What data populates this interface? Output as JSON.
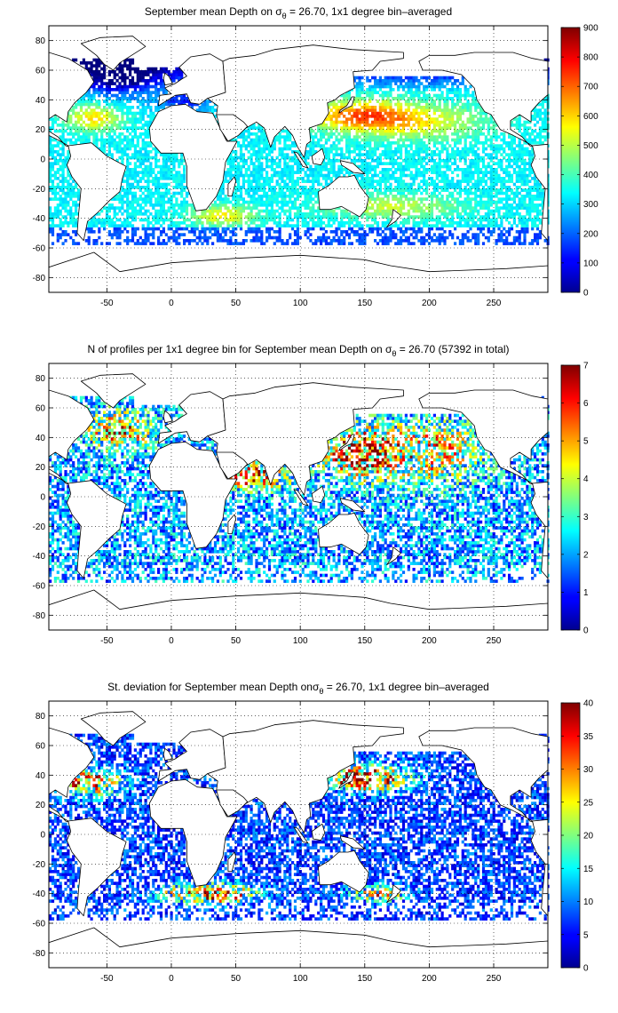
{
  "chart_data": [
    {
      "type": "heatmap",
      "title": "September mean Depth on σθ = 26.70, 1x1 degree bin–averaged",
      "title_parts": {
        "pre": "September mean Depth on σ",
        "sub": "θ",
        "post": " = 26.70, 1x1 degree bin–averaged"
      },
      "xlim": [
        -95,
        292
      ],
      "ylim": [
        -90,
        90
      ],
      "x_ticks": [
        -50,
        0,
        50,
        100,
        150,
        200,
        250
      ],
      "y_ticks": [
        80,
        60,
        40,
        20,
        0,
        -20,
        -40,
        -60,
        -80
      ],
      "colorbar": {
        "min": 0,
        "max": 900,
        "ticks": [
          0,
          100,
          200,
          300,
          400,
          500,
          600,
          700,
          800,
          900
        ]
      },
      "colormap": "jet",
      "grid": "dotted",
      "variable": "depth"
    },
    {
      "type": "heatmap",
      "title": "N of profiles per 1x1 degree bin for September mean Depth on σθ = 26.70 (57392 in total)",
      "title_parts": {
        "pre": "N of profiles per 1x1 degree bin for September mean Depth on σ",
        "sub": "θ",
        "post": " = 26.70 (57392 in total)"
      },
      "total_profiles": 57392,
      "xlim": [
        -95,
        292
      ],
      "ylim": [
        -90,
        90
      ],
      "x_ticks": [
        -50,
        0,
        50,
        100,
        150,
        200,
        250
      ],
      "y_ticks": [
        80,
        60,
        40,
        20,
        0,
        -20,
        -40,
        -60,
        -80
      ],
      "colorbar": {
        "min": 0,
        "max": 7,
        "ticks": [
          0,
          1,
          2,
          3,
          4,
          5,
          6,
          7
        ]
      },
      "colormap": "jet",
      "grid": "dotted",
      "variable": "count"
    },
    {
      "type": "heatmap",
      "title": "St. deviation for September mean Depth onσθ = 26.70, 1x1 degree bin–averaged",
      "title_parts": {
        "pre": "St. deviation for September mean Depth onσ",
        "sub": "θ",
        "post": " = 26.70, 1x1 degree bin–averaged"
      },
      "xlim": [
        -95,
        292
      ],
      "ylim": [
        -90,
        90
      ],
      "x_ticks": [
        -50,
        0,
        50,
        100,
        150,
        200,
        250
      ],
      "y_ticks": [
        80,
        60,
        40,
        20,
        0,
        -20,
        -40,
        -60,
        -80
      ],
      "colorbar": {
        "min": 0,
        "max": 40,
        "ticks": [
          0,
          5,
          10,
          15,
          20,
          25,
          30,
          35,
          40
        ]
      },
      "colormap": "jet",
      "grid": "dotted",
      "variable": "stdev"
    }
  ]
}
